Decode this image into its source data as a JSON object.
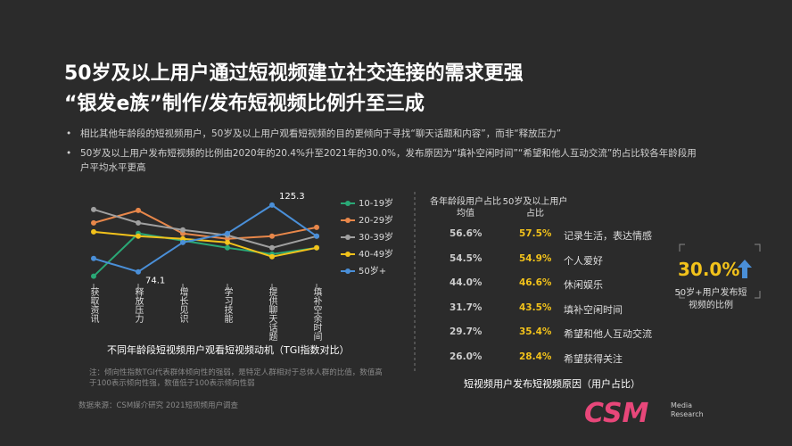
{
  "slide": {
    "title_lines": [
      "50岁及以上用户通过短视频建立社交连接的需求更强",
      "“银发e族”制作/发布短视频比例升至三成"
    ],
    "bullets": [
      "相比其他年龄段的短视频用户，50岁及以上用户观看短视频的目的更倾向于寻找“聊天话题和内容”，而非“释放压力”",
      "50岁及以上用户发布短视频的比例由2020年的20.4%升至2021年的30.0%，发布原因为“填补空闲时间”“希望和他人互动交流”的占比较各年龄段用户平均水平更高"
    ],
    "source": "数据来源：CSM媒介研究 2021短视频用户调查",
    "logo": "CSM",
    "logo_sub": "Media Research"
  },
  "chart_data": {
    "type": "line",
    "title": "不同年龄段短视频用户观看短视频动机（TGI指数对比）",
    "note": "注：倾向性指数TGI代表群体倾向性的强弱，是特定人群相对于总体人群的比值，数值高于100表示倾向性强，数值低于100表示倾向性弱",
    "categories": [
      "获取资讯",
      "释放压力",
      "增长见识",
      "学习技能",
      "提供聊天话题",
      "填补空余时间"
    ],
    "ylim": [
      65,
      130
    ],
    "series": [
      {
        "name": "10-19岁",
        "color": "#2aa876",
        "values": [
          70.7,
          103.5,
          98,
          92.5,
          87.7,
          92.5
        ]
      },
      {
        "name": "20-29岁",
        "color": "#e8874a",
        "values": [
          111.6,
          121.2,
          103.5,
          99.4,
          101.4,
          108.2
        ]
      },
      {
        "name": "30-39岁",
        "color": "#a0a0a0",
        "values": [
          121.9,
          111.6,
          106.2,
          102.1,
          92.5,
          101.4
        ]
      },
      {
        "name": "40-49岁",
        "color": "#f2c21b",
        "values": [
          104.8,
          101.4,
          99.4,
          96.6,
          85.7,
          92.5
        ]
      },
      {
        "name": "50岁+",
        "color": "#4a8fd8",
        "values": [
          84.3,
          74.1,
          96.6,
          103.5,
          125.3,
          101.4
        ]
      }
    ]
  },
  "table": {
    "caption": "短视频用户发布短视频原因（用户占比）",
    "header": [
      "各年龄段用户占比均值",
      "50岁及以上用户占比"
    ],
    "rows": [
      [
        "56.6%",
        "57.5%",
        "记录生活，表达情感"
      ],
      [
        "54.5%",
        "54.9%",
        "个人爱好"
      ],
      [
        "44.0%",
        "46.6%",
        "休闲娱乐"
      ],
      [
        "31.7%",
        "43.5%",
        "填补空闲时间"
      ],
      [
        "29.7%",
        "35.4%",
        "希望和他人互动交流"
      ],
      [
        "26.0%",
        "28.4%",
        "希望获得关注"
      ]
    ]
  },
  "callout": {
    "value": "30.0%",
    "text": "50岁+用户发布短视频的比例"
  }
}
